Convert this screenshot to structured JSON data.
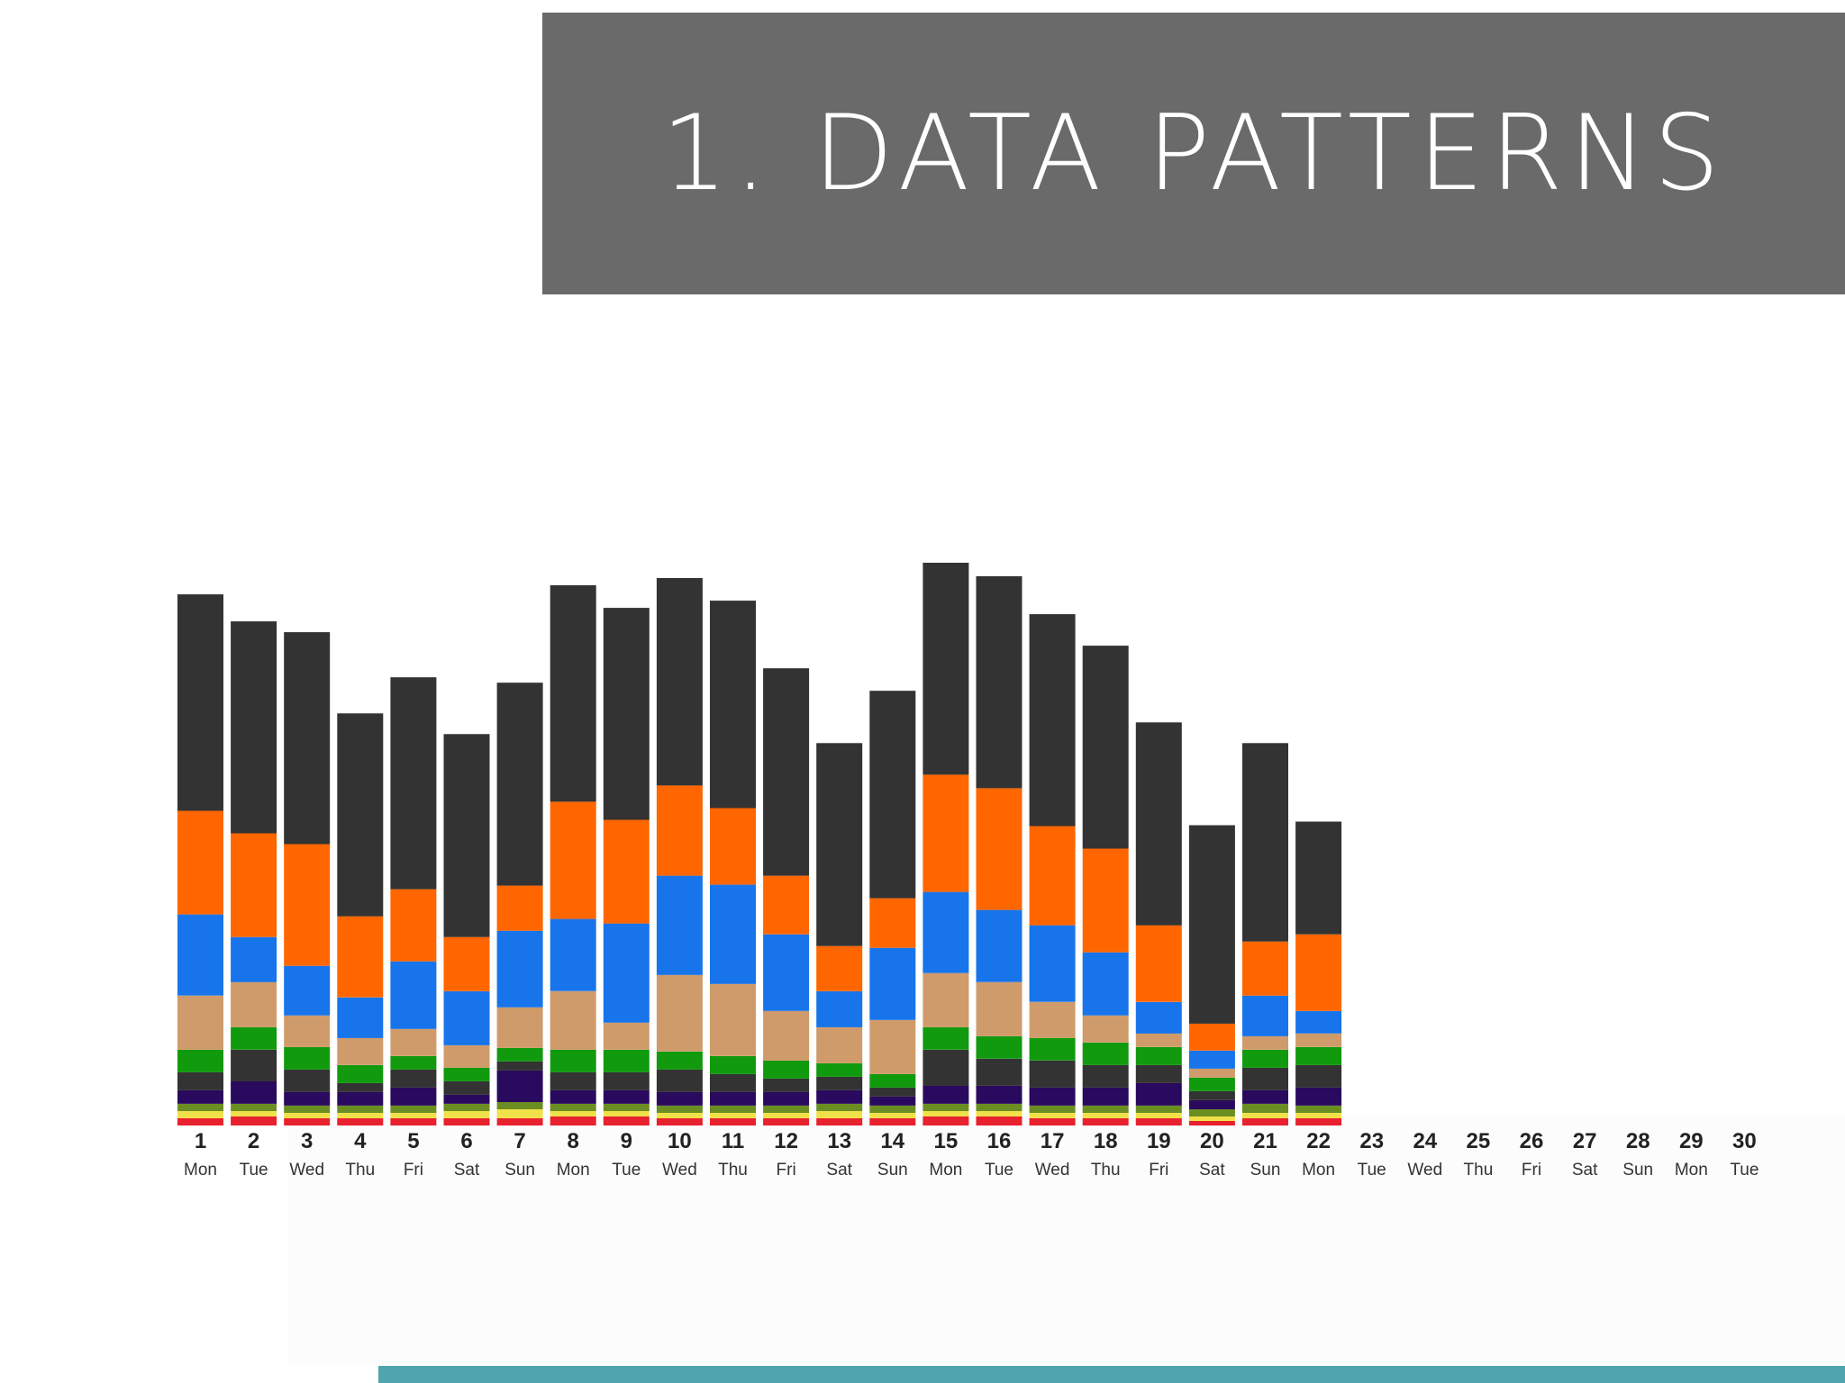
{
  "slide": {
    "title": "1. DATA PATTERNS"
  },
  "colors": {
    "title_bg": "#6a6a6a",
    "title_text": "#ffffff",
    "accent_strip": "#4fa6ae"
  },
  "chart_data": {
    "type": "bar",
    "stacked": true,
    "title": "",
    "xlabel": "",
    "ylabel": "",
    "legend": "none",
    "grid": false,
    "categories": [
      "1",
      "2",
      "3",
      "4",
      "5",
      "6",
      "7",
      "8",
      "9",
      "10",
      "11",
      "12",
      "13",
      "14",
      "15",
      "16",
      "17",
      "18",
      "19",
      "20",
      "21",
      "22",
      "23",
      "24",
      "25",
      "26",
      "27",
      "28",
      "29",
      "30"
    ],
    "weekdays": [
      "Mon",
      "Tue",
      "Wed",
      "Thu",
      "Fri",
      "Sat",
      "Sun",
      "Mon",
      "Tue",
      "Wed",
      "Thu",
      "Fri",
      "Sat",
      "Sun",
      "Mon",
      "Tue",
      "Wed",
      "Thu",
      "Fri",
      "Sat",
      "Sun",
      "Mon",
      "Tue",
      "Wed",
      "Thu",
      "Fri",
      "Sat",
      "Sun",
      "Mon",
      "Tue"
    ],
    "ylim": [
      0,
      62
    ],
    "series": [
      {
        "color": "#e8212e",
        "values": [
          0.8,
          1,
          0.8,
          0.8,
          0.8,
          0.8,
          0.8,
          1,
          1,
          0.8,
          0.8,
          0.8,
          0.8,
          0.8,
          1,
          1,
          0.8,
          0.8,
          0.8,
          0.5,
          0.8,
          0.8,
          0,
          0,
          0,
          0,
          0,
          0,
          0,
          0
        ]
      },
      {
        "color": "#f0e14a",
        "values": [
          0.8,
          0.6,
          0.6,
          0.6,
          0.6,
          0.8,
          1,
          0.6,
          0.6,
          0.6,
          0.6,
          0.6,
          0.8,
          0.6,
          0.6,
          0.6,
          0.6,
          0.6,
          0.6,
          0.5,
          0.6,
          0.6,
          0,
          0,
          0,
          0,
          0,
          0,
          0,
          0
        ]
      },
      {
        "color": "#6b8e23",
        "values": [
          0.8,
          0.8,
          0.8,
          0.8,
          0.8,
          0.8,
          0.8,
          0.8,
          0.8,
          0.8,
          0.8,
          0.8,
          0.8,
          0.8,
          0.8,
          0.8,
          0.8,
          0.8,
          0.8,
          0.8,
          1,
          0.8,
          0,
          0,
          0,
          0,
          0,
          0,
          0,
          0
        ]
      },
      {
        "color": "#2a0a5e",
        "values": [
          1.5,
          2.5,
          1.5,
          1.5,
          2,
          1,
          3.5,
          1.5,
          1.5,
          1.5,
          1.5,
          1.5,
          1.5,
          1,
          2,
          2,
          2,
          2,
          2.5,
          1,
          1.5,
          2,
          0,
          0,
          0,
          0,
          0,
          0,
          0,
          0
        ]
      },
      {
        "color": "#333333",
        "values": [
          2,
          3.5,
          2.5,
          1,
          2,
          1.5,
          1,
          2,
          2,
          2.5,
          2,
          1.5,
          1.5,
          1,
          4,
          3,
          3,
          2.5,
          2,
          1,
          2.5,
          2.5,
          0,
          0,
          0,
          0,
          0,
          0,
          0,
          0
        ]
      },
      {
        "color": "#119a0e",
        "values": [
          2.5,
          2.5,
          2.5,
          2,
          1.5,
          1.5,
          1.5,
          2.5,
          2.5,
          2,
          2,
          2,
          1.5,
          1.5,
          2.5,
          2.5,
          2.5,
          2.5,
          2,
          1.5,
          2,
          2,
          0,
          0,
          0,
          0,
          0,
          0,
          0,
          0
        ]
      },
      {
        "color": "#d09b6a",
        "values": [
          6,
          5,
          3.5,
          3,
          3,
          2.5,
          4.5,
          6.5,
          3,
          8.5,
          8,
          5.5,
          4,
          6,
          6,
          6,
          4,
          3,
          1.5,
          1,
          1.5,
          1.5,
          0,
          0,
          0,
          0,
          0,
          0,
          0,
          0
        ]
      },
      {
        "color": "#1874ea",
        "values": [
          9,
          5,
          5.5,
          4.5,
          7.5,
          6,
          8.5,
          8,
          11,
          11,
          11,
          8.5,
          4,
          8,
          9,
          8,
          8.5,
          7,
          3.5,
          2,
          4.5,
          2.5,
          0,
          0,
          0,
          0,
          0,
          0,
          0,
          0
        ]
      },
      {
        "color": "#ff6600",
        "values": [
          11.5,
          11.5,
          13.5,
          9,
          8,
          6,
          5,
          13,
          11.5,
          10,
          8.5,
          6.5,
          5,
          5.5,
          13,
          13.5,
          11,
          11.5,
          8.5,
          3,
          6,
          8.5,
          0,
          0,
          0,
          0,
          0,
          0,
          0,
          0
        ]
      },
      {
        "color": "#333333",
        "values": [
          24,
          23.5,
          23.5,
          22.5,
          23.5,
          22.5,
          22.5,
          24,
          23.5,
          23,
          23,
          23,
          22.5,
          23,
          23.5,
          23.5,
          23.5,
          22.5,
          22.5,
          22,
          22,
          12.5,
          0,
          0,
          0,
          0,
          0,
          0,
          0,
          0
        ]
      }
    ]
  }
}
